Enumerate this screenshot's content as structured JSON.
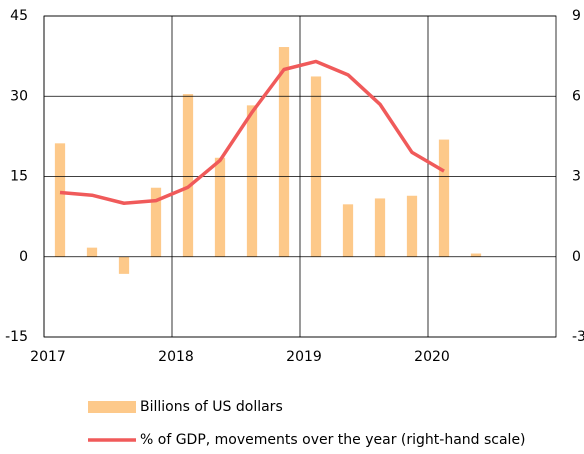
{
  "chart_data": {
    "type": "bar-line",
    "x": [
      2017.125,
      2017.375,
      2017.625,
      2017.875,
      2018.125,
      2018.375,
      2018.625,
      2018.875,
      2019.125,
      2019.375,
      2019.625,
      2019.875,
      2020.125,
      2020.375
    ],
    "series": [
      {
        "name": "Billions of US dollars",
        "type": "bar",
        "color": "#fdc98a",
        "values": [
          21.2,
          1.7,
          -3.2,
          12.9,
          30.4,
          18.5,
          28.3,
          39.2,
          33.7,
          9.8,
          10.9,
          11.4,
          21.9,
          0.6
        ]
      },
      {
        "name": "% of GDP, movements over the year (right-hand scale)",
        "type": "line",
        "axis": "y2",
        "color": "#f05a5a",
        "values": [
          2.4,
          2.3,
          2.0,
          2.1,
          2.6,
          3.6,
          5.4,
          7.0,
          7.3,
          6.8,
          5.7,
          3.9,
          3.2,
          null
        ]
      }
    ],
    "xlim": [
      2017,
      2021
    ],
    "xticks": [
      2017,
      2018,
      2019,
      2020
    ],
    "ylim": [
      -15,
      45
    ],
    "yticks": [
      -15,
      0,
      15,
      30,
      45
    ],
    "y2lim": [
      -3,
      9
    ],
    "y2ticks": [
      -3,
      0,
      3,
      6,
      9
    ],
    "grid": true,
    "legend": "bottom"
  }
}
